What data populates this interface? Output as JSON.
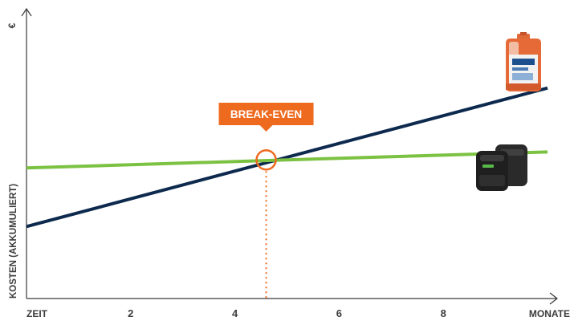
{
  "chart_data": {
    "type": "line",
    "title": "",
    "xlabel_left": "ZEIT",
    "xlabel_right": "MONATE",
    "ylabel": "KOSTEN (AKKUMULIERT)",
    "yunit": "€",
    "x_ticks": [
      "2",
      "4",
      "6",
      "8"
    ],
    "xlim": [
      0,
      10
    ],
    "ylim": [
      0,
      10
    ],
    "grid": false,
    "legend": "none",
    "series": [
      {
        "color": "#0d2a4e",
        "icon": "canister-icon",
        "x": [
          0,
          10
        ],
        "y": [
          2.1,
          7.3
        ]
      },
      {
        "color": "#7cc242",
        "icon": "dispenser-icon",
        "x": [
          0,
          10
        ],
        "y": [
          4.3,
          4.9
        ]
      }
    ],
    "break_even": {
      "label": "BREAK-EVEN",
      "x": 4.6,
      "y": 4.6,
      "color": "#ee6a1f"
    }
  }
}
